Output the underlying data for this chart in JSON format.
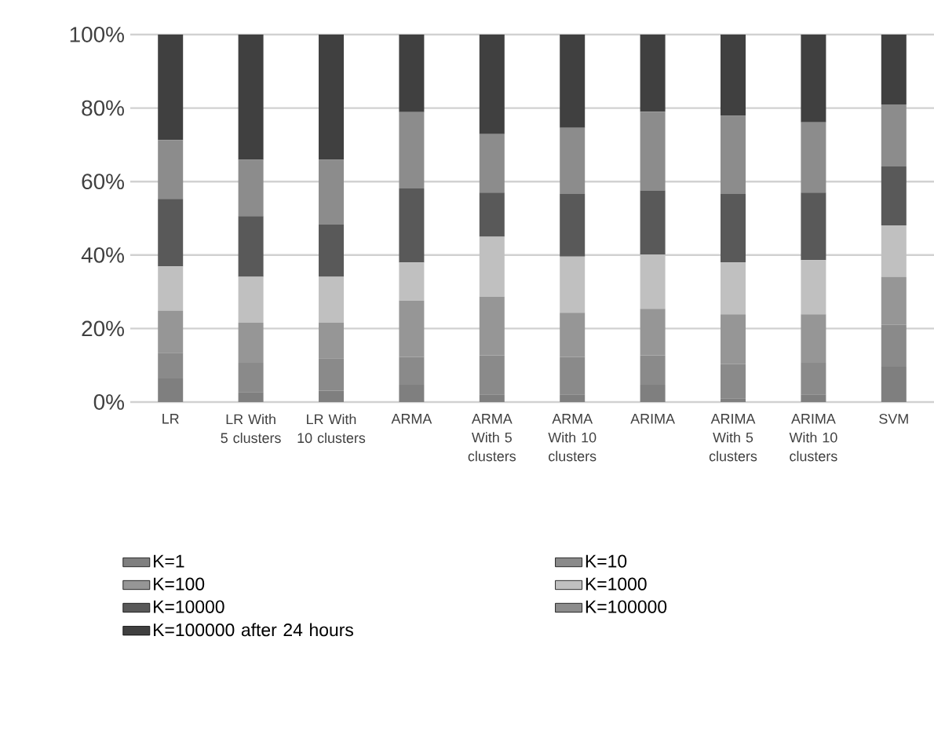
{
  "chart_data": {
    "type": "bar",
    "stacked": true,
    "categories": [
      "LR",
      "LR With 5 clusters",
      "LR With 10 clusters",
      "ARMA",
      "ARMA With 5 clusters",
      "ARMA With 10 clusters",
      "ARIMA",
      "ARIMA With 5 clusters",
      "ARIMA With 10 clusters",
      "SVM"
    ],
    "series": [
      {
        "name": "K=1",
        "color": "#7f7f7f",
        "values": [
          6.4,
          2.7,
          3.1,
          4.7,
          2.1,
          2.1,
          4.7,
          1.0,
          2.1,
          9.6
        ]
      },
      {
        "name": "K=10",
        "color": "#8a8a8a",
        "values": [
          7.0,
          8.0,
          8.8,
          7.6,
          10.6,
          10.2,
          8.0,
          9.3,
          8.6,
          11.4
        ]
      },
      {
        "name": "K=100",
        "color": "#969696",
        "values": [
          11.5,
          10.9,
          9.7,
          15.3,
          16.0,
          12.0,
          12.7,
          13.6,
          13.2,
          13.1
        ]
      },
      {
        "name": "K=1000",
        "color": "#c0c0c0",
        "values": [
          12.0,
          12.5,
          12.5,
          10.4,
          16.3,
          15.3,
          14.7,
          14.1,
          14.7,
          14.0
        ]
      },
      {
        "name": "K=10000",
        "color": "#595959",
        "values": [
          18.4,
          16.5,
          14.3,
          20.1,
          12.0,
          17.0,
          17.5,
          18.6,
          18.4,
          16.0
        ]
      },
      {
        "name": "K=100000",
        "color": "#8c8c8c",
        "values": [
          16.0,
          15.3,
          17.5,
          20.8,
          15.9,
          18.0,
          21.4,
          21.3,
          19.1,
          16.9
        ]
      },
      {
        "name": "K=100000 after 24 hours",
        "color": "#404040",
        "values": [
          28.7,
          34.1,
          34.1,
          21.1,
          27.1,
          25.4,
          21.0,
          22.1,
          23.9,
          19.0
        ]
      }
    ],
    "ylim": [
      0,
      100
    ],
    "yticks": [
      {
        "value": 0,
        "label": "0%"
      },
      {
        "value": 20,
        "label": "20%"
      },
      {
        "value": 40,
        "label": "40%"
      },
      {
        "value": 60,
        "label": "60%"
      },
      {
        "value": 80,
        "label": "80%"
      },
      {
        "value": 100,
        "label": "100%"
      }
    ],
    "grid": "y",
    "legend": "bottom"
  }
}
